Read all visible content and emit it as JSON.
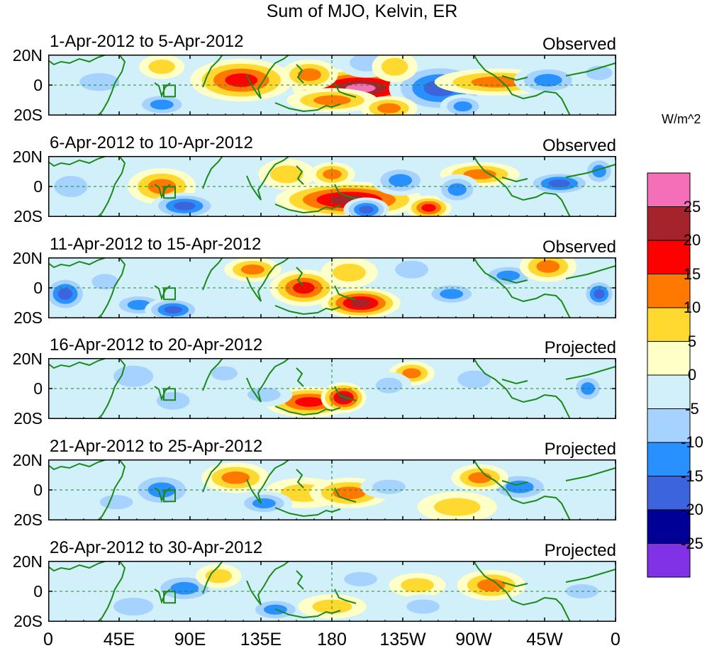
{
  "title": "Sum of MJO, Kelvin, ER",
  "panels": [
    {
      "date": "1-Apr-2012 to 5-Apr-2012",
      "status": "Observed"
    },
    {
      "date": "6-Apr-2012 to 10-Apr-2012",
      "status": "Observed"
    },
    {
      "date": "11-Apr-2012 to 15-Apr-2012",
      "status": "Observed"
    },
    {
      "date": "16-Apr-2012 to 20-Apr-2012",
      "status": "Projected"
    },
    {
      "date": "21-Apr-2012 to 25-Apr-2012",
      "status": "Projected"
    },
    {
      "date": "26-Apr-2012 to 30-Apr-2012",
      "status": "Projected"
    }
  ],
  "lat_labels": [
    "20N",
    "0",
    "20S"
  ],
  "lon_labels": [
    "0",
    "45E",
    "90E",
    "135E",
    "180",
    "135W",
    "90W",
    "45W",
    "0"
  ],
  "colorbar": {
    "units": "W/m^2",
    "levels": [
      "25",
      "20",
      "15",
      "10",
      "5",
      "0",
      "-5",
      "-10",
      "-15",
      "-20",
      "-25"
    ],
    "colors": [
      "#f46eb8",
      "#a5232a",
      "#ff0000",
      "#ff7800",
      "#ffd830",
      "#ffffc8",
      "#d2f0fa",
      "#a5d2ff",
      "#2891ff",
      "#3c64dc",
      "#000096",
      "#8232e6"
    ]
  },
  "coast_color": "#1a8a1a"
}
